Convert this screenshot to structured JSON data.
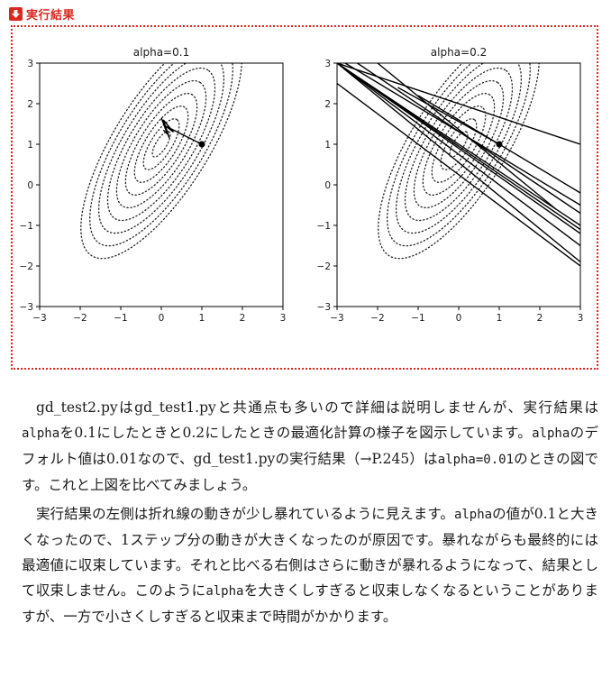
{
  "header": {
    "title": "実行結果",
    "icon": "down-arrow-icon",
    "accent": "#d9281f"
  },
  "figure": {
    "left_title": "alpha=0.1",
    "right_title": "alpha=0.2",
    "x_ticks": [
      "−3",
      "−2",
      "−1",
      "0",
      "1",
      "2",
      "3"
    ],
    "y_ticks": [
      "3",
      "2",
      "1",
      "0",
      "−1",
      "−2",
      "−3"
    ]
  },
  "chart_data": [
    {
      "type": "line",
      "title": "alpha=0.1",
      "xlim": [
        -3,
        3
      ],
      "ylim": [
        -3,
        3
      ],
      "contour_center": [
        0,
        1
      ],
      "start_point": [
        1,
        1
      ],
      "path": [
        [
          1,
          1
        ],
        [
          0.1,
          1.45
        ],
        [
          0.3,
          1.3
        ],
        [
          0.05,
          1.6
        ],
        [
          0.2,
          1.15
        ],
        [
          0.0,
          1.65
        ],
        [
          0.15,
          1.25
        ],
        [
          0.05,
          1.35
        ],
        [
          0.1,
          1.3
        ]
      ]
    },
    {
      "type": "line",
      "title": "alpha=0.2",
      "xlim": [
        -3,
        3
      ],
      "ylim": [
        -3,
        3
      ],
      "contour_center": [
        0,
        1
      ],
      "start_point": [
        1,
        1
      ],
      "segments": [
        [
          [
            -3,
            3
          ],
          [
            3,
            1
          ]
        ],
        [
          [
            -3,
            2.5
          ],
          [
            3,
            -2
          ]
        ],
        [
          [
            -3,
            3
          ],
          [
            3,
            -1.5
          ]
        ],
        [
          [
            -3,
            3
          ],
          [
            3,
            -1.2
          ]
        ],
        [
          [
            -3,
            3
          ],
          [
            3,
            -1.0
          ]
        ],
        [
          [
            -3,
            3
          ],
          [
            3,
            -1.1
          ]
        ],
        [
          [
            -2.8,
            3
          ],
          [
            3,
            -0.5
          ]
        ],
        [
          [
            -2.5,
            3
          ],
          [
            3,
            -0.7
          ]
        ],
        [
          [
            -3,
            3
          ],
          [
            3,
            -1.9
          ]
        ],
        [
          [
            -1,
            2.2
          ],
          [
            3,
            -0.2
          ]
        ],
        [
          [
            -2,
            3
          ],
          [
            2.4,
            -0.6
          ]
        ],
        [
          [
            -1.5,
            2.4
          ],
          [
            1,
            1
          ]
        ]
      ]
    }
  ],
  "body": {
    "p1": [
      {
        "t": "gd_test2.pyはgd_test1.pyと共通点も多いので詳細は説明しませんが、実行結果は"
      },
      {
        "t": "alpha",
        "mono": true
      },
      {
        "t": "を0.1にしたときと0.2にしたときの最適化計算の様子を図示しています。"
      },
      {
        "t": "alpha",
        "mono": true
      },
      {
        "t": "のデフォルト値は0.01なので、gd_test1.pyの実行結果（→P.245）は"
      },
      {
        "t": "alpha=0.01",
        "mono": true
      },
      {
        "t": "のときの図です。これと上図を比べてみましょう。"
      }
    ],
    "p2": [
      {
        "t": "実行結果の左側は折れ線の動きが少し暴れているように見えます。"
      },
      {
        "t": "alpha",
        "mono": true
      },
      {
        "t": "の値が0.1と大きくなったので、1ステップ分の動きが大きくなったのが原因です。暴れながらも最終的には最適値に収束しています。それと比べる右側はさらに動きが暴れるようになって、結果として収束しません。このように"
      },
      {
        "t": "alpha",
        "mono": true
      },
      {
        "t": "を大きくしすぎると収束しなくなるということがありますが、一方で小さくしすぎると収束まで時間がかかります。"
      }
    ]
  }
}
